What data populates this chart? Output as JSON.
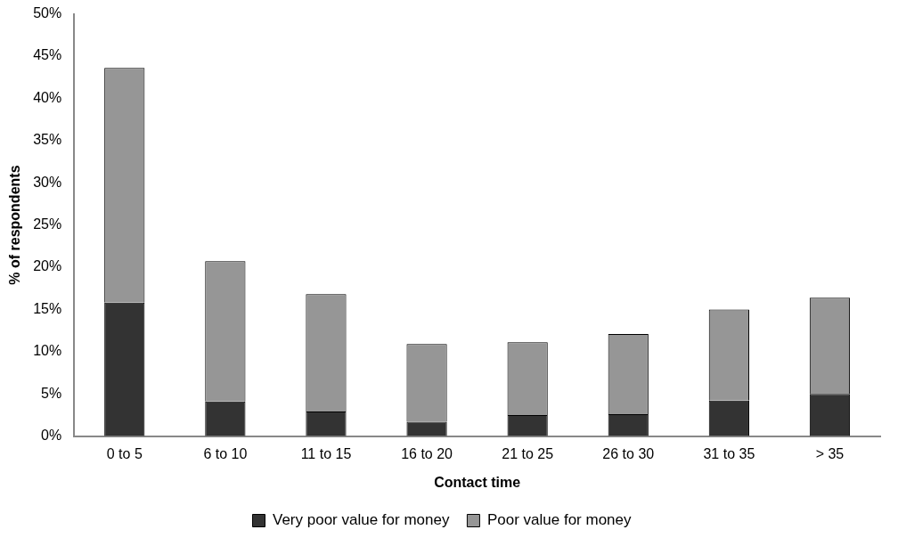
{
  "chart_data": {
    "type": "bar",
    "stacked": true,
    "xlabel": "Contact time",
    "ylabel": "% of respondents",
    "categories": [
      "0 to 5",
      "6 to 10",
      "11 to 15",
      "16 to 20",
      "21 to 25",
      "26 to 30",
      "31 to 35",
      "> 35"
    ],
    "series": [
      {
        "name": "Very poor value for money",
        "color": "#333333",
        "values": [
          15.8,
          4.1,
          2.9,
          1.7,
          2.5,
          2.6,
          4.2,
          5.0
        ]
      },
      {
        "name": "Poor value for money",
        "color": "#969696",
        "values": [
          27.8,
          16.6,
          13.9,
          9.2,
          8.6,
          9.5,
          10.8,
          11.4
        ]
      }
    ],
    "ylim": [
      0,
      50
    ],
    "yticks": [
      {
        "value": 0,
        "label": "0%"
      },
      {
        "value": 5,
        "label": "5%"
      },
      {
        "value": 10,
        "label": "10%"
      },
      {
        "value": 15,
        "label": "15%"
      },
      {
        "value": 20,
        "label": "20%"
      },
      {
        "value": 25,
        "label": "25%"
      },
      {
        "value": 30,
        "label": "30%"
      },
      {
        "value": 35,
        "label": "35%"
      },
      {
        "value": 40,
        "label": "40%"
      },
      {
        "value": 45,
        "label": "45%"
      },
      {
        "value": 50,
        "label": "50%"
      }
    ],
    "grid": false,
    "legend": "bottom"
  }
}
